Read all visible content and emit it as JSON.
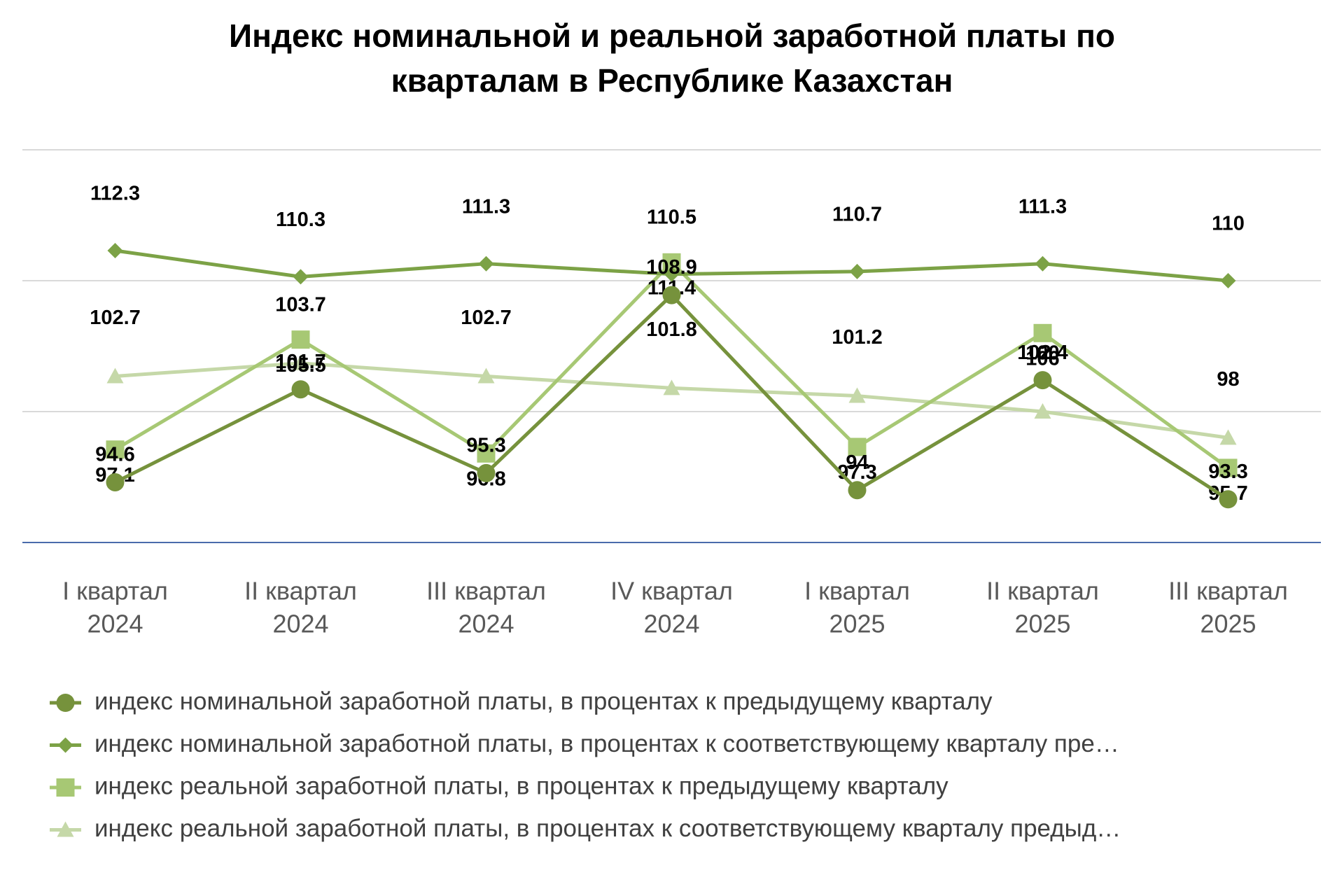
{
  "chart_data": {
    "type": "line",
    "title": [
      "Индекс номинальной и реальной заработной платы по",
      "кварталам в Республике Казахстан"
    ],
    "categories": [
      [
        "I квартал",
        "2024"
      ],
      [
        "II квартал",
        "2024"
      ],
      [
        "III квартал",
        "2024"
      ],
      [
        "IV квартал",
        "2024"
      ],
      [
        "I квартал",
        "2025"
      ],
      [
        "II квартал",
        "2025"
      ],
      [
        "III квартал",
        "2025"
      ]
    ],
    "series": [
      {
        "name": "индекс номинальной заработной платы, в процентах к предыдущему кварталу",
        "color": "#76923c",
        "marker": "circle",
        "values": [
          94.6,
          101.7,
          95.3,
          108.9,
          94.0,
          102.4,
          93.3
        ]
      },
      {
        "name": "индекс номинальной заработной платы, в процентах к соответствующему кварталу пре…",
        "color": "#7ca246",
        "marker": "diamond",
        "values": [
          112.3,
          110.3,
          111.3,
          110.5,
          110.7,
          111.3,
          110.0
        ]
      },
      {
        "name": "индекс реальной заработной платы, в процентах к предыдущему кварталу",
        "color": "#a7c874",
        "marker": "square",
        "values": [
          97.1,
          105.5,
          96.8,
          111.4,
          97.3,
          106.0,
          95.7
        ]
      },
      {
        "name": "индекс реальной заработной платы, в процентах к соответствующему кварталу предыд…",
        "color": "#c5d8a8",
        "marker": "triangle",
        "values": [
          102.7,
          103.7,
          102.7,
          101.8,
          101.2,
          100.0,
          98.0
        ]
      }
    ],
    "ylim": [
      90,
      120
    ],
    "yticks": [
      90,
      100,
      110,
      120
    ],
    "grid": true
  }
}
